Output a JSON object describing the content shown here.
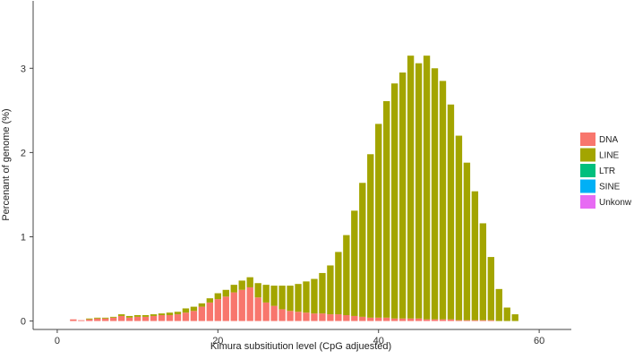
{
  "chart_data": {
    "type": "bar",
    "stacked": true,
    "title": "",
    "xlabel": "Kimura subsitiution level (CpG adjuested)",
    "ylabel": "Percenant of genome (%)",
    "xlim": [
      -3,
      64
    ],
    "ylim": [
      -0.1,
      3.8
    ],
    "x_ticks": [
      0,
      20,
      40,
      60
    ],
    "y_ticks": [
      0,
      1,
      2,
      3
    ],
    "legend_position": "right",
    "grid": false,
    "x": [
      2,
      3,
      4,
      5,
      6,
      7,
      8,
      9,
      10,
      11,
      12,
      13,
      14,
      15,
      16,
      17,
      18,
      19,
      20,
      21,
      22,
      23,
      24,
      25,
      26,
      27,
      28,
      29,
      30,
      31,
      32,
      33,
      34,
      35,
      36,
      37,
      38,
      39,
      40,
      41,
      42,
      43,
      44,
      45,
      46,
      47,
      48,
      49,
      50,
      51,
      52,
      53,
      54,
      55,
      56,
      57
    ],
    "series": [
      {
        "name": "DNA",
        "color": "#F8766D",
        "values": [
          0.02,
          0.01,
          0.02,
          0.03,
          0.03,
          0.04,
          0.06,
          0.04,
          0.05,
          0.05,
          0.06,
          0.07,
          0.07,
          0.08,
          0.1,
          0.12,
          0.17,
          0.22,
          0.26,
          0.29,
          0.34,
          0.37,
          0.4,
          0.28,
          0.22,
          0.18,
          0.14,
          0.12,
          0.11,
          0.1,
          0.09,
          0.09,
          0.08,
          0.08,
          0.07,
          0.06,
          0.05,
          0.04,
          0.04,
          0.04,
          0.03,
          0.03,
          0.03,
          0.03,
          0.02,
          0.02,
          0.02,
          0.02,
          0.01,
          0.01,
          0.01,
          0.01,
          0.01,
          0.0,
          0.0,
          0.0
        ]
      },
      {
        "name": "LINE",
        "color": "#A3A500",
        "values": [
          0.0,
          0.0,
          0.01,
          0.01,
          0.01,
          0.01,
          0.02,
          0.02,
          0.02,
          0.02,
          0.02,
          0.02,
          0.03,
          0.03,
          0.05,
          0.05,
          0.04,
          0.05,
          0.07,
          0.08,
          0.09,
          0.11,
          0.12,
          0.17,
          0.21,
          0.24,
          0.28,
          0.3,
          0.33,
          0.37,
          0.41,
          0.48,
          0.58,
          0.74,
          0.95,
          1.25,
          1.59,
          1.94,
          2.3,
          2.57,
          2.79,
          2.92,
          3.12,
          3.03,
          3.13,
          2.98,
          2.83,
          2.55,
          2.19,
          1.87,
          1.53,
          1.15,
          0.75,
          0.38,
          0.16,
          0.08
        ]
      },
      {
        "name": "LTR",
        "color": "#00BF7D",
        "values": [
          0.0,
          0.0,
          0.0,
          0.0,
          0.0,
          0.0,
          0.0,
          0.0,
          0.0,
          0.0,
          0.0,
          0.0,
          0.0,
          0.0,
          0.0,
          0.0,
          0.0,
          0.0,
          0.0,
          0.0,
          0.0,
          0.0,
          0.0,
          0.0,
          0.0,
          0.0,
          0.0,
          0.0,
          0.0,
          0.0,
          0.0,
          0.0,
          0.0,
          0.0,
          0.0,
          0.0,
          0.0,
          0.0,
          0.0,
          0.0,
          0.0,
          0.0,
          0.0,
          0.0,
          0.0,
          0.0,
          0.0,
          0.0,
          0.0,
          0.0,
          0.0,
          0.0,
          0.0,
          0.0,
          0.0,
          0.0
        ]
      },
      {
        "name": "SINE",
        "color": "#00B0F6",
        "values": [
          0.0,
          0.0,
          0.0,
          0.0,
          0.0,
          0.0,
          0.0,
          0.0,
          0.0,
          0.0,
          0.0,
          0.0,
          0.0,
          0.0,
          0.0,
          0.0,
          0.0,
          0.0,
          0.0,
          0.0,
          0.0,
          0.0,
          0.0,
          0.0,
          0.0,
          0.0,
          0.0,
          0.0,
          0.0,
          0.0,
          0.0,
          0.0,
          0.0,
          0.0,
          0.0,
          0.0,
          0.0,
          0.0,
          0.0,
          0.0,
          0.0,
          0.0,
          0.0,
          0.0,
          0.0,
          0.0,
          0.0,
          0.0,
          0.0,
          0.0,
          0.0,
          0.0,
          0.0,
          0.0,
          0.0,
          0.0
        ]
      },
      {
        "name": "Unkonw",
        "color": "#E76BF3",
        "values": [
          0.0,
          0.0,
          0.0,
          0.0,
          0.0,
          0.0,
          0.0,
          0.0,
          0.0,
          0.0,
          0.0,
          0.0,
          0.0,
          0.0,
          0.0,
          0.0,
          0.0,
          0.0,
          0.0,
          0.0,
          0.0,
          0.0,
          0.0,
          0.0,
          0.0,
          0.0,
          0.0,
          0.0,
          0.0,
          0.0,
          0.0,
          0.0,
          0.0,
          0.0,
          0.0,
          0.0,
          0.0,
          0.0,
          0.0,
          0.0,
          0.0,
          0.0,
          0.0,
          0.0,
          0.0,
          0.0,
          0.0,
          0.0,
          0.0,
          0.0,
          0.0,
          0.0,
          0.0,
          0.0,
          0.0,
          0.0
        ]
      }
    ]
  }
}
